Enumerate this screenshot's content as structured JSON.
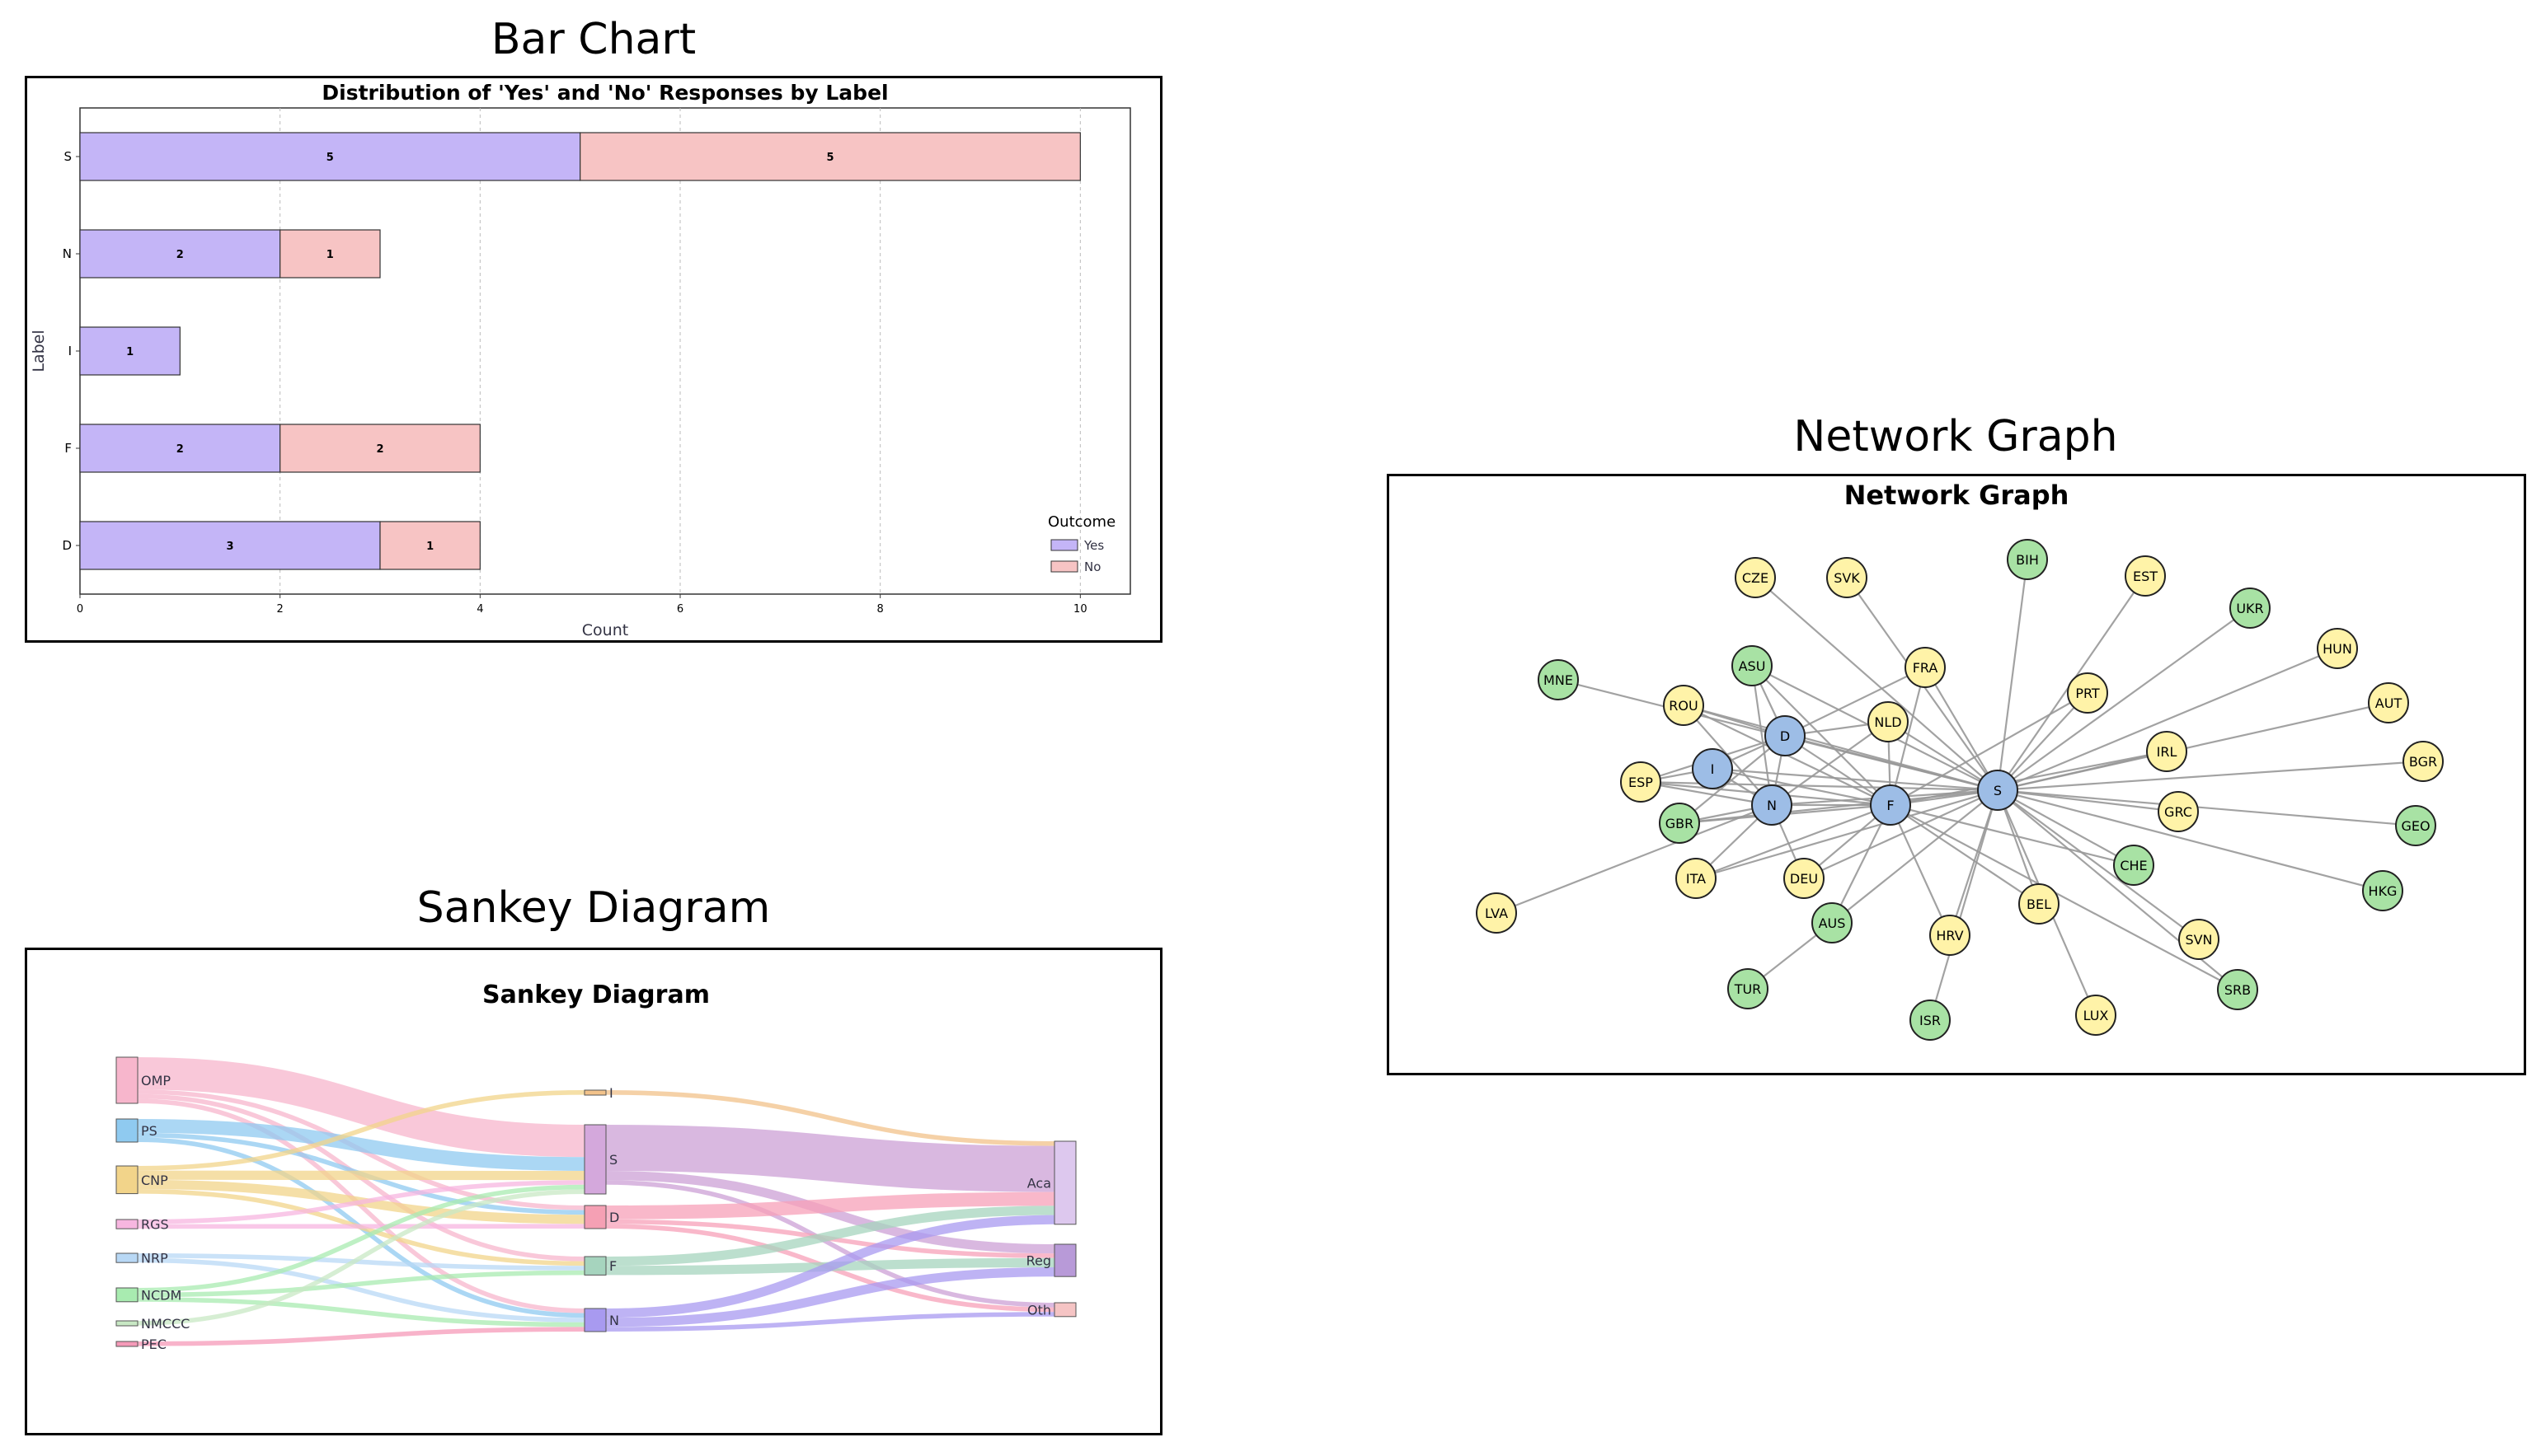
{
  "sections": {
    "bar_title": "Bar Chart",
    "network_title": "Network Graph",
    "sankey_title": "Sankey Diagram"
  },
  "colors": {
    "yes": "#c4b5f7",
    "no": "#f7c4c4",
    "hub_node": "#9dbde6",
    "green_node": "#a8e2a4",
    "yellow_node": "#fff3a8",
    "edge": "#999999"
  },
  "chart_data": [
    {
      "type": "bar",
      "orientation": "horizontal",
      "stacked": true,
      "title": "Distribution of 'Yes' and 'No' Responses by Label",
      "xlabel": "Count",
      "ylabel": "Label",
      "categories": [
        "S",
        "N",
        "I",
        "F",
        "D"
      ],
      "series": [
        {
          "name": "Yes",
          "values": [
            5,
            2,
            1,
            2,
            3
          ]
        },
        {
          "name": "No",
          "values": [
            5,
            1,
            0,
            2,
            1
          ]
        }
      ],
      "xlim": [
        0,
        10.5
      ],
      "xticks": [
        0,
        2,
        4,
        6,
        8,
        10
      ],
      "grid": "vertical dashed",
      "legend": {
        "title": "Outcome",
        "placement": "lower-right",
        "entries": [
          "Yes",
          "No"
        ]
      }
    },
    {
      "type": "network",
      "title": "Network Graph",
      "hub_nodes": [
        "S",
        "F",
        "N",
        "D",
        "I"
      ],
      "green_nodes": [
        "BIH",
        "UKR",
        "MNE",
        "ASU",
        "GBR",
        "CHE",
        "GEO",
        "HKG",
        "AUS",
        "TUR",
        "ISR",
        "SRB"
      ],
      "yellow_nodes": [
        "CZE",
        "SVK",
        "EST",
        "HUN",
        "AUT",
        "BGR",
        "ROU",
        "FRA",
        "NLD",
        "PRT",
        "IRL",
        "ESP",
        "GRC",
        "ITA",
        "DEU",
        "LVA",
        "BEL",
        "HRV",
        "SVN",
        "LUX"
      ],
      "edges": [
        [
          "S",
          "CZE"
        ],
        [
          "S",
          "SVK"
        ],
        [
          "S",
          "BIH"
        ],
        [
          "S",
          "EST"
        ],
        [
          "S",
          "UKR"
        ],
        [
          "S",
          "HUN"
        ],
        [
          "S",
          "AUT"
        ],
        [
          "S",
          "BGR"
        ],
        [
          "S",
          "GEO"
        ],
        [
          "S",
          "HKG"
        ],
        [
          "S",
          "SRB"
        ],
        [
          "S",
          "SVN"
        ],
        [
          "S",
          "CHE"
        ],
        [
          "S",
          "GRC"
        ],
        [
          "S",
          "IRL"
        ],
        [
          "S",
          "PRT"
        ],
        [
          "S",
          "FRA"
        ],
        [
          "S",
          "NLD"
        ],
        [
          "S",
          "ASU"
        ],
        [
          "S",
          "MNE"
        ],
        [
          "S",
          "ROU"
        ],
        [
          "S",
          "D"
        ],
        [
          "S",
          "I"
        ],
        [
          "S",
          "N"
        ],
        [
          "S",
          "ESP"
        ],
        [
          "S",
          "GBR"
        ],
        [
          "S",
          "ITA"
        ],
        [
          "S",
          "DEU"
        ],
        [
          "S",
          "AUS"
        ],
        [
          "S",
          "HRV"
        ],
        [
          "S",
          "BEL"
        ],
        [
          "S",
          "LUX"
        ],
        [
          "S",
          "F"
        ],
        [
          "S",
          "ISR"
        ],
        [
          "F",
          "D"
        ],
        [
          "F",
          "N"
        ],
        [
          "F",
          "I"
        ],
        [
          "F",
          "ESP"
        ],
        [
          "F",
          "GBR"
        ],
        [
          "F",
          "ITA"
        ],
        [
          "F",
          "DEU"
        ],
        [
          "F",
          "AUS"
        ],
        [
          "F",
          "HRV"
        ],
        [
          "F",
          "BEL"
        ],
        [
          "F",
          "SRB"
        ],
        [
          "F",
          "CHE"
        ],
        [
          "F",
          "FRA"
        ],
        [
          "F",
          "NLD"
        ],
        [
          "F",
          "PRT"
        ],
        [
          "F",
          "IRL"
        ],
        [
          "F",
          "ROU"
        ],
        [
          "F",
          "ASU"
        ],
        [
          "N",
          "D"
        ],
        [
          "N",
          "I"
        ],
        [
          "N",
          "ESP"
        ],
        [
          "N",
          "GBR"
        ],
        [
          "N",
          "ITA"
        ],
        [
          "N",
          "DEU"
        ],
        [
          "N",
          "ROU"
        ],
        [
          "N",
          "ASU"
        ],
        [
          "N",
          "NLD"
        ],
        [
          "D",
          "ASU"
        ],
        [
          "D",
          "ROU"
        ],
        [
          "D",
          "I"
        ],
        [
          "D",
          "ESP"
        ],
        [
          "D",
          "NLD"
        ],
        [
          "D",
          "FRA"
        ],
        [
          "D",
          "GBR"
        ],
        [
          "I",
          "ESP"
        ],
        [
          "AUS",
          "TUR"
        ],
        [
          "LVA",
          "N"
        ]
      ]
    },
    {
      "type": "sankey",
      "title": "Sankey Diagram",
      "sources": [
        "OMP",
        "PS",
        "CNP",
        "RGS",
        "NRP",
        "NCDM",
        "NMCCC",
        "PEC"
      ],
      "middle": [
        "I",
        "S",
        "D",
        "F",
        "N"
      ],
      "targets": [
        "Aca",
        "Reg",
        "Oth"
      ],
      "links": [
        {
          "source": "OMP",
          "target": "S",
          "value": 7
        },
        {
          "source": "OMP",
          "target": "D",
          "value": 1
        },
        {
          "source": "OMP",
          "target": "F",
          "value": 1
        },
        {
          "source": "OMP",
          "target": "N",
          "value": 1
        },
        {
          "source": "PS",
          "target": "S",
          "value": 3
        },
        {
          "source": "PS",
          "target": "D",
          "value": 1
        },
        {
          "source": "PS",
          "target": "N",
          "value": 1
        },
        {
          "source": "CNP",
          "target": "I",
          "value": 1
        },
        {
          "source": "CNP",
          "target": "S",
          "value": 2
        },
        {
          "source": "CNP",
          "target": "D",
          "value": 2
        },
        {
          "source": "CNP",
          "target": "F",
          "value": 1
        },
        {
          "source": "RGS",
          "target": "S",
          "value": 1
        },
        {
          "source": "RGS",
          "target": "D",
          "value": 1
        },
        {
          "source": "NRP",
          "target": "F",
          "value": 1
        },
        {
          "source": "NRP",
          "target": "N",
          "value": 1
        },
        {
          "source": "NCDM",
          "target": "S",
          "value": 1
        },
        {
          "source": "NCDM",
          "target": "F",
          "value": 1
        },
        {
          "source": "NCDM",
          "target": "N",
          "value": 1
        },
        {
          "source": "NMCCC",
          "target": "S",
          "value": 1
        },
        {
          "source": "PEC",
          "target": "N",
          "value": 1
        },
        {
          "source": "I",
          "target": "Aca",
          "value": 1
        },
        {
          "source": "S",
          "target": "Aca",
          "value": 10
        },
        {
          "source": "S",
          "target": "Reg",
          "value": 2
        },
        {
          "source": "S",
          "target": "Oth",
          "value": 1
        },
        {
          "source": "D",
          "target": "Aca",
          "value": 3
        },
        {
          "source": "D",
          "target": "Reg",
          "value": 1
        },
        {
          "source": "D",
          "target": "Oth",
          "value": 1
        },
        {
          "source": "F",
          "target": "Aca",
          "value": 2
        },
        {
          "source": "F",
          "target": "Reg",
          "value": 2
        },
        {
          "source": "N",
          "target": "Aca",
          "value": 2
        },
        {
          "source": "N",
          "target": "Reg",
          "value": 2
        },
        {
          "source": "N",
          "target": "Oth",
          "value": 1
        }
      ]
    }
  ]
}
